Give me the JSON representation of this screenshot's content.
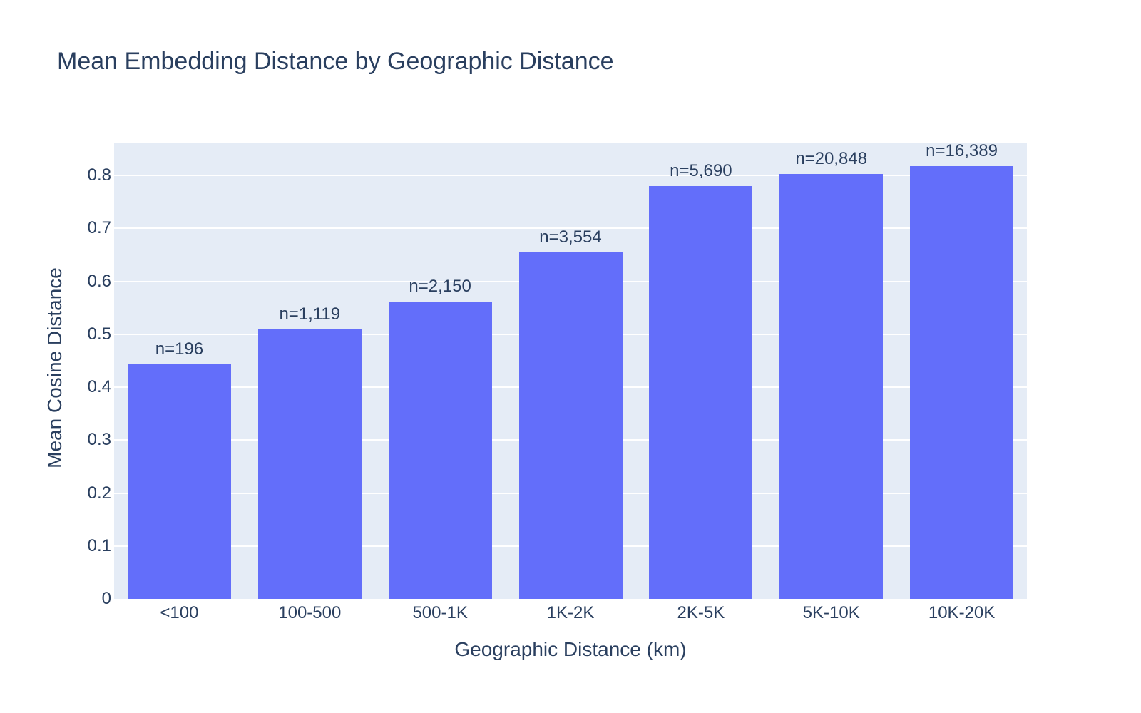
{
  "chart_data": {
    "type": "bar",
    "title": "Mean Embedding Distance by Geographic Distance",
    "xlabel": "Geographic Distance (km)",
    "ylabel": "Mean Cosine Distance",
    "categories": [
      "<100",
      "100-500",
      "500-1K",
      "1K-2K",
      "2K-5K",
      "5K-10K",
      "10K-20K"
    ],
    "values": [
      0.443,
      0.509,
      0.561,
      0.654,
      0.78,
      0.803,
      0.818
    ],
    "bar_labels": [
      "n=196",
      "n=1,119",
      "n=2,150",
      "n=3,554",
      "n=5,690",
      "n=20,848",
      "n=16,389"
    ],
    "yticks": [
      0,
      0.1,
      0.2,
      0.3,
      0.4,
      0.5,
      0.6,
      0.7,
      0.8
    ],
    "ylim": [
      0,
      0.862
    ],
    "grid": true,
    "legend": "none",
    "colors": {
      "bar": "#636efa",
      "plot_bg": "#e5ecf6",
      "grid": "#ffffff",
      "text": "#2a3f5f",
      "paper_bg": "#ffffff"
    }
  }
}
